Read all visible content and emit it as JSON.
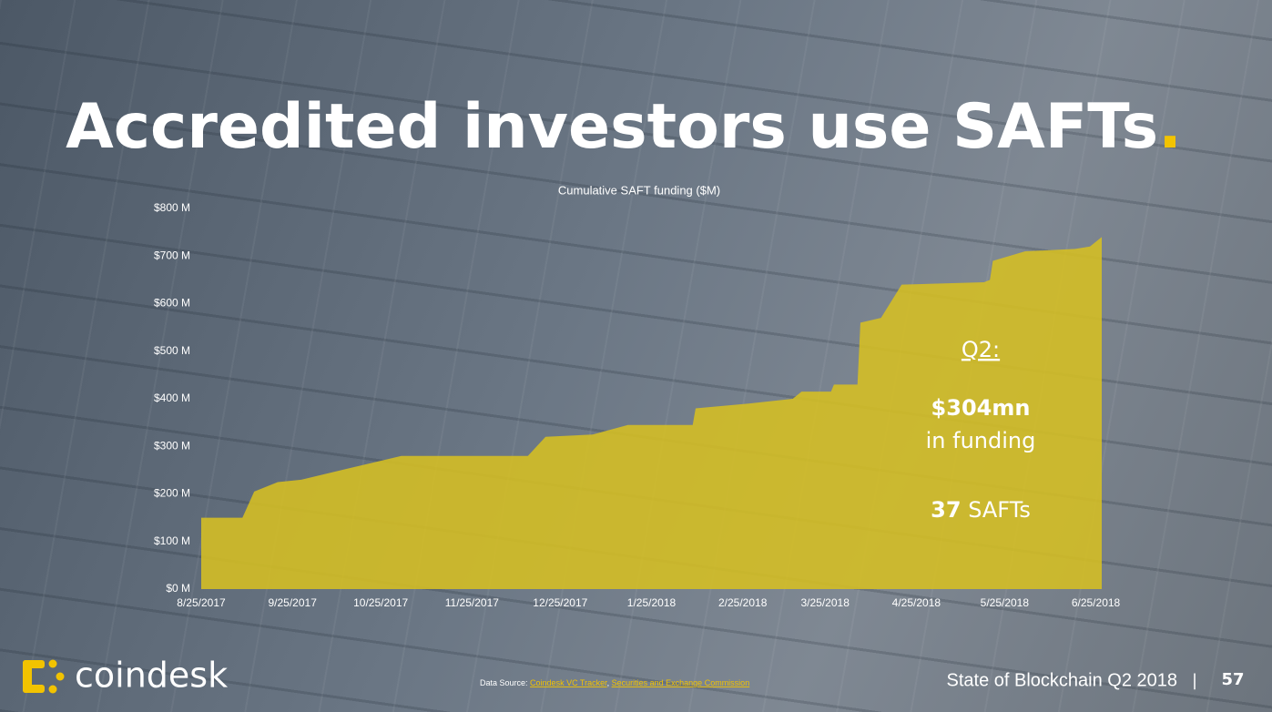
{
  "chart_data": {
    "type": "area",
    "title": "Accredited investors use SAFTs",
    "title_accent": ".",
    "subtitle": "Cumulative SAFT funding ($M)",
    "color": "#d6bf22",
    "x": [
      "8/25/2017",
      "9/8/2017",
      "9/12/2017",
      "9/20/2017",
      "9/28/2017",
      "11/1/2017",
      "12/14/2017",
      "12/17/2017",
      "12/20/2017",
      "1/5/2018",
      "1/17/2018",
      "2/8/2018",
      "2/9/2018",
      "2/27/2018",
      "3/14/2018",
      "3/17/2018",
      "3/27/2018",
      "3/28/2018",
      "4/5/2018",
      "4/6/2018",
      "4/13/2018",
      "4/16/2018",
      "4/20/2018",
      "5/18/2018",
      "5/20/2018",
      "5/21/2018",
      "6/1/2018",
      "6/18/2018",
      "6/23/2018",
      "6/27/2018"
    ],
    "values": [
      150,
      150,
      205,
      225,
      230,
      280,
      280,
      300,
      320,
      325,
      345,
      345,
      380,
      390,
      400,
      415,
      415,
      430,
      430,
      560,
      570,
      600,
      640,
      645,
      650,
      690,
      710,
      715,
      720,
      740
    ],
    "xlim": [
      "8/25/2017",
      "6/27/2018"
    ],
    "xticks": [
      "8/25/2017",
      "9/25/2017",
      "10/25/2017",
      "11/25/2017",
      "12/25/2017",
      "1/25/2018",
      "2/25/2018",
      "3/25/2018",
      "4/25/2018",
      "5/25/2018",
      "6/25/2018"
    ],
    "ylim": [
      0,
      800
    ],
    "yticks": [
      {
        "value": 0,
        "label": "$0 M"
      },
      {
        "value": 100,
        "label": "$100 M"
      },
      {
        "value": 200,
        "label": "$200 M"
      },
      {
        "value": 300,
        "label": "$300 M"
      },
      {
        "value": 400,
        "label": "$400 M"
      },
      {
        "value": 500,
        "label": "$500 M"
      },
      {
        "value": 600,
        "label": "$600 M"
      },
      {
        "value": 700,
        "label": "$700 M"
      },
      {
        "value": 800,
        "label": "$800 M"
      }
    ],
    "annotation": {
      "heading": "Q2:",
      "amount": "$304mn",
      "amount_text": "in funding",
      "count": "37",
      "count_text": "SAFTs"
    }
  },
  "footer": {
    "brand": "coindesk",
    "source_label": "Data Source:",
    "source_1": "Coindesk VC Tracker",
    "separator": ",",
    "source_2": "Securities and Exchange Commission",
    "report": "State of Blockchain Q2 2018",
    "divider": "|",
    "page": "57"
  }
}
